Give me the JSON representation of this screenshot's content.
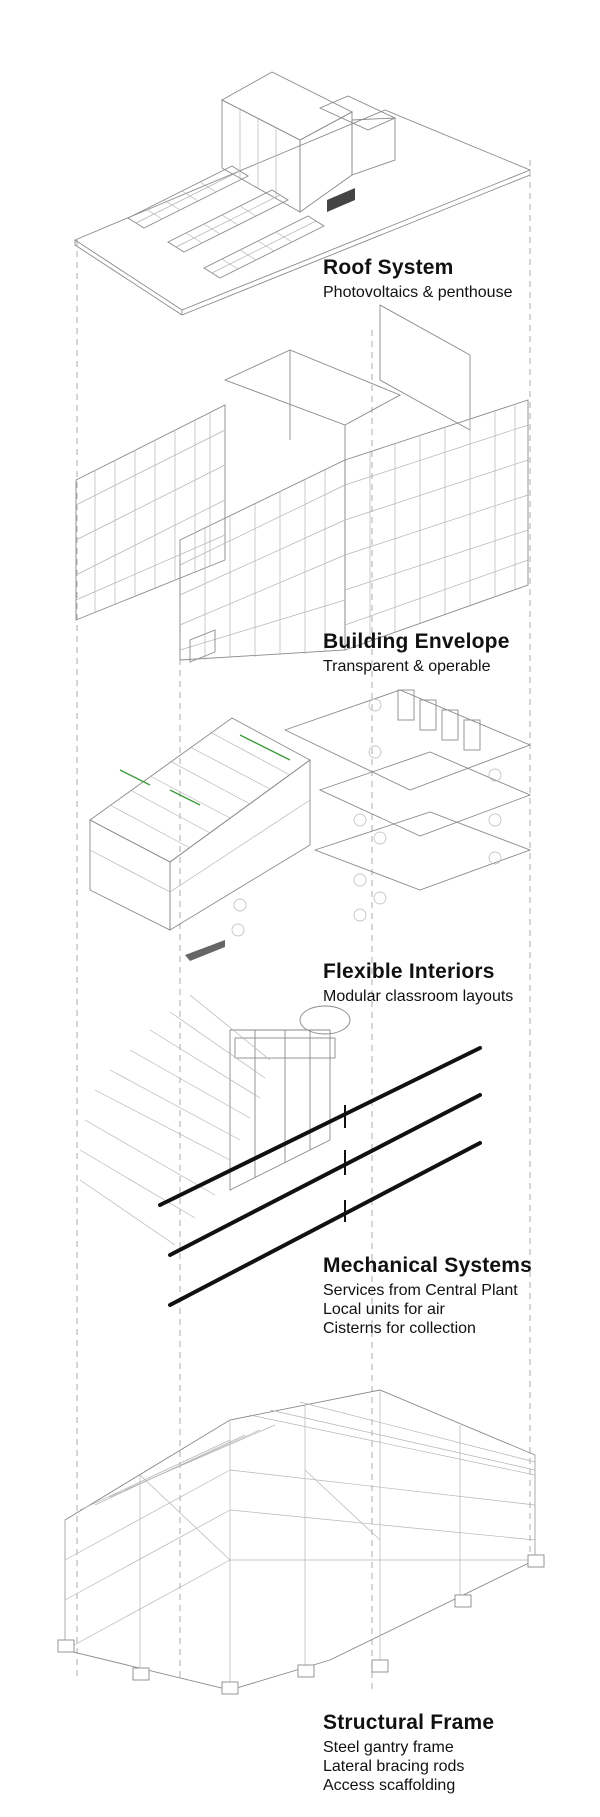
{
  "layers": [
    {
      "id": "roof",
      "title": "Roof System",
      "lines": [
        "Photovoltaics & penthouse"
      ]
    },
    {
      "id": "envelope",
      "title": "Building Envelope",
      "lines": [
        "Transparent & operable"
      ]
    },
    {
      "id": "interiors",
      "title": "Flexible Interiors",
      "lines": [
        "Modular classroom layouts"
      ]
    },
    {
      "id": "mechanical",
      "title": "Mechanical Systems",
      "lines": [
        "Services from Central Plant",
        "Local units for air",
        "Cisterns for collection"
      ]
    },
    {
      "id": "structure",
      "title": "Structural Frame",
      "lines": [
        "Steel gantry frame",
        "Lateral bracing rods",
        "Access scaffolding"
      ]
    }
  ]
}
